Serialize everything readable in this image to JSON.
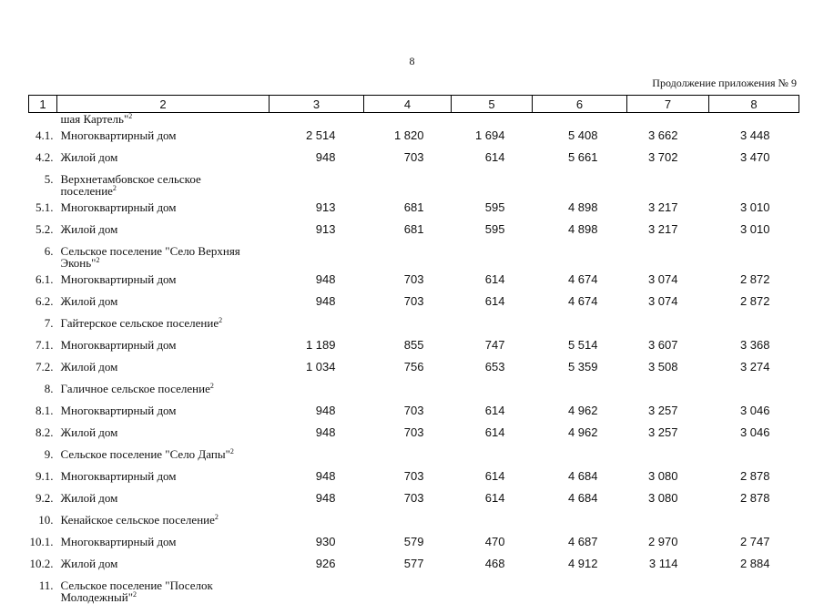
{
  "page_number": "8",
  "appendix_note": "Продолжение приложения № 9",
  "header": [
    "1",
    "2",
    "3",
    "4",
    "5",
    "6",
    "7",
    "8"
  ],
  "continued_row": {
    "text": "шая Картель\"",
    "sup": "2"
  },
  "rows": [
    {
      "num": "4.1.",
      "name": "Многоквартирный дом",
      "sup": "",
      "values": [
        "2 514",
        "1 820",
        "1 694",
        "5 408",
        "3 662",
        "3 448"
      ]
    },
    {
      "num": "4.2.",
      "name": "Жилой дом",
      "sup": "",
      "values": [
        "948",
        "703",
        "614",
        "5 661",
        "3 702",
        "3 470"
      ]
    },
    {
      "num": "5.",
      "name": "Верхнетамбовское сельское поселение",
      "sup": "2",
      "values": []
    },
    {
      "num": "5.1.",
      "name": "Многоквартирный дом",
      "sup": "",
      "values": [
        "913",
        "681",
        "595",
        "4 898",
        "3 217",
        "3 010"
      ]
    },
    {
      "num": "5.2.",
      "name": "Жилой дом",
      "sup": "",
      "values": [
        "913",
        "681",
        "595",
        "4 898",
        "3 217",
        "3 010"
      ]
    },
    {
      "num": "6.",
      "name": "Сельское поселение \"Село Верхняя Эконь\"",
      "sup": "2",
      "values": []
    },
    {
      "num": "6.1.",
      "name": "Многоквартирный дом",
      "sup": "",
      "values": [
        "948",
        "703",
        "614",
        "4 674",
        "3 074",
        "2 872"
      ]
    },
    {
      "num": "6.2.",
      "name": "Жилой дом",
      "sup": "",
      "values": [
        "948",
        "703",
        "614",
        "4 674",
        "3 074",
        "2 872"
      ]
    },
    {
      "num": "7.",
      "name": "Гайтерское сельское поселение",
      "sup": "2",
      "values": []
    },
    {
      "num": "7.1.",
      "name": "Многоквартирный дом",
      "sup": "",
      "values": [
        "1 189",
        "855",
        "747",
        "5 514",
        "3 607",
        "3 368"
      ]
    },
    {
      "num": "7.2.",
      "name": "Жилой дом",
      "sup": "",
      "values": [
        "1 034",
        "756",
        "653",
        "5 359",
        "3 508",
        "3 274"
      ]
    },
    {
      "num": "8.",
      "name": "Галичное сельское поселение",
      "sup": "2",
      "values": []
    },
    {
      "num": "8.1.",
      "name": "Многоквартирный дом",
      "sup": "",
      "values": [
        "948",
        "703",
        "614",
        "4 962",
        "3 257",
        "3 046"
      ]
    },
    {
      "num": "8.2.",
      "name": "Жилой дом",
      "sup": "",
      "values": [
        "948",
        "703",
        "614",
        "4 962",
        "3 257",
        "3 046"
      ]
    },
    {
      "num": "9.",
      "name": "Сельское поселение \"Село Дапы\"",
      "sup": "2",
      "values": []
    },
    {
      "num": "9.1.",
      "name": "Многоквартирный дом",
      "sup": "",
      "values": [
        "948",
        "703",
        "614",
        "4 684",
        "3 080",
        "2 878"
      ]
    },
    {
      "num": "9.2.",
      "name": "Жилой дом",
      "sup": "",
      "values": [
        "948",
        "703",
        "614",
        "4 684",
        "3 080",
        "2 878"
      ]
    },
    {
      "num": "10.",
      "name": "Кенайское сельское поселение",
      "sup": "2",
      "values": []
    },
    {
      "num": "10.1.",
      "name": "Многоквартирный дом",
      "sup": "",
      "values": [
        "930",
        "579",
        "470",
        "4 687",
        "2 970",
        "2 747"
      ]
    },
    {
      "num": "10.2.",
      "name": "Жилой дом",
      "sup": "",
      "values": [
        "926",
        "577",
        "468",
        "4 912",
        "3 114",
        "2 884"
      ]
    },
    {
      "num": "11.",
      "name": "Сельское поселение \"Поселок Молодежный\"",
      "sup": "2",
      "values": []
    }
  ]
}
